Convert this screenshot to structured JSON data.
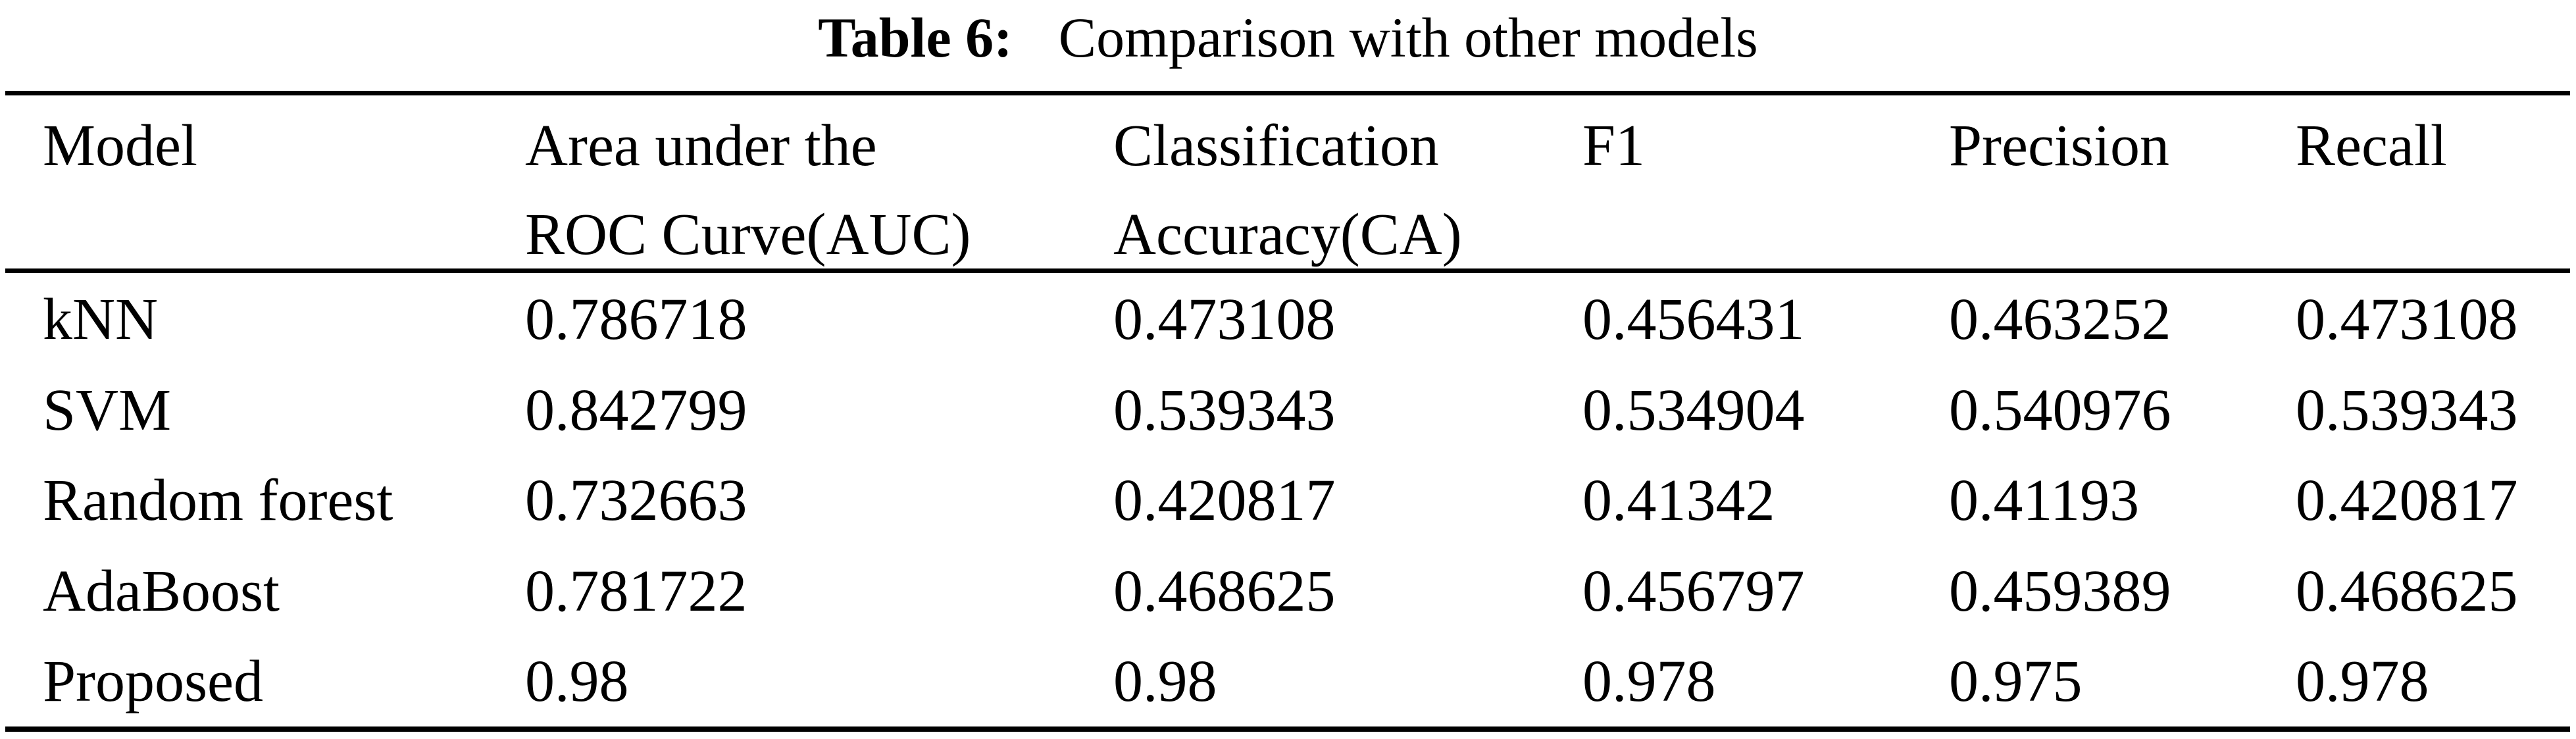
{
  "caption": {
    "label": "Table 6:",
    "title": "Comparison with other models"
  },
  "table": {
    "header": {
      "model": "Model",
      "auc": {
        "line1": "Area under the",
        "line2": "ROC Curve(AUC)"
      },
      "ca": {
        "line1": "Classification",
        "line2": "Accuracy(CA)"
      },
      "f1": "F1",
      "precision": "Precision",
      "recall": "Recall"
    },
    "rows": [
      {
        "model": "kNN",
        "auc": "0.786718",
        "ca": "0.473108",
        "f1": "0.456431",
        "precision": "0.463252",
        "recall": "0.473108"
      },
      {
        "model": "SVM",
        "auc": "0.842799",
        "ca": "0.539343",
        "f1": "0.534904",
        "precision": "0.540976",
        "recall": "0.539343"
      },
      {
        "model": "Random forest",
        "auc": "0.732663",
        "ca": "0.420817",
        "f1": "0.41342",
        "precision": "0.41193",
        "recall": "0.420817"
      },
      {
        "model": "AdaBoost",
        "auc": "0.781722",
        "ca": "0.468625",
        "f1": "0.456797",
        "precision": "0.459389",
        "recall": "0.468625"
      },
      {
        "model": "Proposed",
        "auc": "0.98",
        "ca": "0.98",
        "f1": "0.978",
        "precision": "0.975",
        "recall": "0.978"
      }
    ]
  },
  "colors": {
    "text": "#000000",
    "background": "#ffffff",
    "rule": "#000000"
  }
}
